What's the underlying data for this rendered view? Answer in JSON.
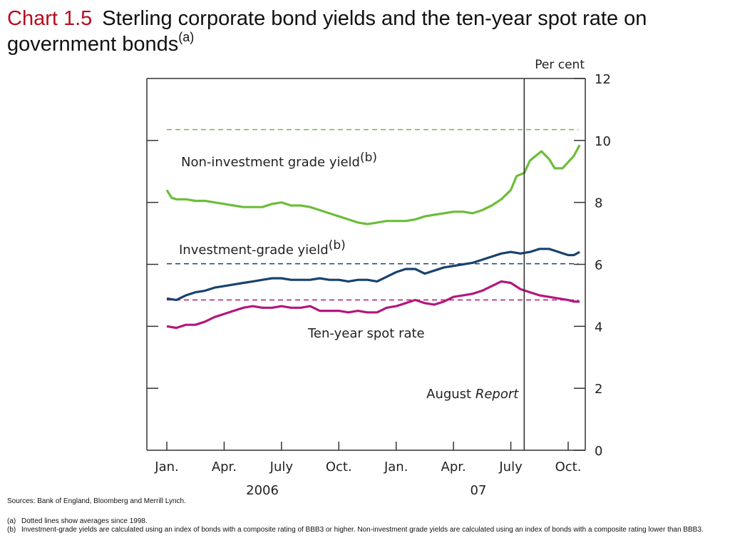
{
  "title": {
    "chart_number": "Chart 1.5",
    "text": "Sterling corporate bond yields and the ten-year spot rate on government bonds",
    "superscript": "(a)"
  },
  "sources": "Sources:  Bank of England, Bloomberg and Merrill Lynch.",
  "notes": [
    {
      "label": "(a)",
      "text": "Dotted lines show averages since 1998."
    },
    {
      "label": "(b)",
      "text": "Investment-grade yields are calculated using an index of bonds with a composite rating of BBB3 or higher.  Non-investment grade yields are calculated using an index of bonds with a composite rating lower than BBB3."
    }
  ],
  "chart_data": {
    "type": "line",
    "ylabel": "Per cent",
    "ylim": [
      0,
      12
    ],
    "yticks": [
      "0",
      "2",
      "4",
      "6",
      "8",
      "10",
      "12"
    ],
    "xlim": [
      0,
      22.5
    ],
    "xticks": [
      {
        "pos": 0,
        "label": "Jan."
      },
      {
        "pos": 3,
        "label": "Apr."
      },
      {
        "pos": 6,
        "label": "July"
      },
      {
        "pos": 9,
        "label": "Oct."
      },
      {
        "pos": 12,
        "label": "Jan."
      },
      {
        "pos": 15,
        "label": "Apr."
      },
      {
        "pos": 18,
        "label": "July"
      },
      {
        "pos": 21,
        "label": "Oct."
      }
    ],
    "year_labels": [
      {
        "pos": 5,
        "label": "2006"
      },
      {
        "pos": 16.3,
        "label": "07"
      }
    ],
    "grid": false,
    "series": [
      {
        "name": "Non-investment grade yield",
        "name_superscript": "(b)",
        "color": "#6cbd3a",
        "average": 10.35,
        "x": [
          0,
          0.25,
          0.5,
          1,
          1.5,
          2,
          2.5,
          3,
          3.5,
          4,
          4.5,
          5,
          5.5,
          6,
          6.5,
          7,
          7.5,
          8,
          8.5,
          9,
          9.5,
          10,
          10.5,
          11,
          11.5,
          12,
          12.5,
          13,
          13.5,
          14,
          14.5,
          15,
          15.5,
          16,
          16.5,
          17,
          17.5,
          18,
          18.3,
          18.7,
          19,
          19.3,
          19.6,
          20,
          20.3,
          20.7,
          21,
          21.3,
          21.6
        ],
        "values": [
          8.4,
          8.15,
          8.1,
          8.1,
          8.05,
          8.05,
          8.0,
          7.95,
          7.9,
          7.85,
          7.85,
          7.85,
          7.95,
          8.0,
          7.9,
          7.9,
          7.85,
          7.75,
          7.65,
          7.55,
          7.45,
          7.35,
          7.3,
          7.35,
          7.4,
          7.4,
          7.4,
          7.45,
          7.55,
          7.6,
          7.65,
          7.7,
          7.7,
          7.65,
          7.75,
          7.9,
          8.1,
          8.4,
          8.85,
          8.95,
          9.35,
          9.5,
          9.65,
          9.4,
          9.1,
          9.1,
          9.3,
          9.5,
          9.85
        ]
      },
      {
        "name": "Investment-grade yield",
        "name_superscript": "(b)",
        "color": "#17426e",
        "average": 6.02,
        "x": [
          0,
          0.5,
          1,
          1.5,
          2,
          2.5,
          3,
          3.5,
          4,
          4.5,
          5,
          5.5,
          6,
          6.5,
          7,
          7.5,
          8,
          8.5,
          9,
          9.5,
          10,
          10.5,
          11,
          11.5,
          12,
          12.5,
          13,
          13.5,
          14,
          14.5,
          15,
          15.5,
          16,
          16.5,
          17,
          17.5,
          18,
          18.5,
          19,
          19.5,
          20,
          20.5,
          21,
          21.3,
          21.6
        ],
        "values": [
          4.9,
          4.85,
          5.0,
          5.1,
          5.15,
          5.25,
          5.3,
          5.35,
          5.4,
          5.45,
          5.5,
          5.55,
          5.55,
          5.5,
          5.5,
          5.5,
          5.55,
          5.5,
          5.5,
          5.45,
          5.5,
          5.5,
          5.45,
          5.6,
          5.75,
          5.85,
          5.85,
          5.7,
          5.8,
          5.9,
          5.95,
          6.0,
          6.05,
          6.15,
          6.25,
          6.35,
          6.4,
          6.35,
          6.4,
          6.5,
          6.5,
          6.4,
          6.3,
          6.3,
          6.4
        ]
      },
      {
        "name": "Ten-year spot rate",
        "color": "#b3177c",
        "average": 4.85,
        "x": [
          0,
          0.5,
          1,
          1.5,
          2,
          2.5,
          3,
          3.5,
          4,
          4.5,
          5,
          5.5,
          6,
          6.5,
          7,
          7.5,
          8,
          8.5,
          9,
          9.5,
          10,
          10.5,
          11,
          11.5,
          12,
          12.5,
          13,
          13.5,
          14,
          14.5,
          15,
          15.5,
          16,
          16.5,
          17,
          17.5,
          18,
          18.5,
          19,
          19.5,
          20,
          20.5,
          21,
          21.3,
          21.6
        ],
        "values": [
          4.0,
          3.95,
          4.05,
          4.05,
          4.15,
          4.3,
          4.4,
          4.5,
          4.6,
          4.65,
          4.6,
          4.6,
          4.65,
          4.6,
          4.6,
          4.65,
          4.5,
          4.5,
          4.5,
          4.45,
          4.5,
          4.45,
          4.45,
          4.6,
          4.65,
          4.75,
          4.85,
          4.75,
          4.7,
          4.8,
          4.95,
          5.0,
          5.05,
          5.15,
          5.3,
          5.45,
          5.4,
          5.2,
          5.1,
          5.0,
          4.95,
          4.9,
          4.85,
          4.8,
          4.8
        ]
      }
    ],
    "annotation": {
      "x": 18.7,
      "label": "August",
      "label_italic": "Report"
    }
  }
}
